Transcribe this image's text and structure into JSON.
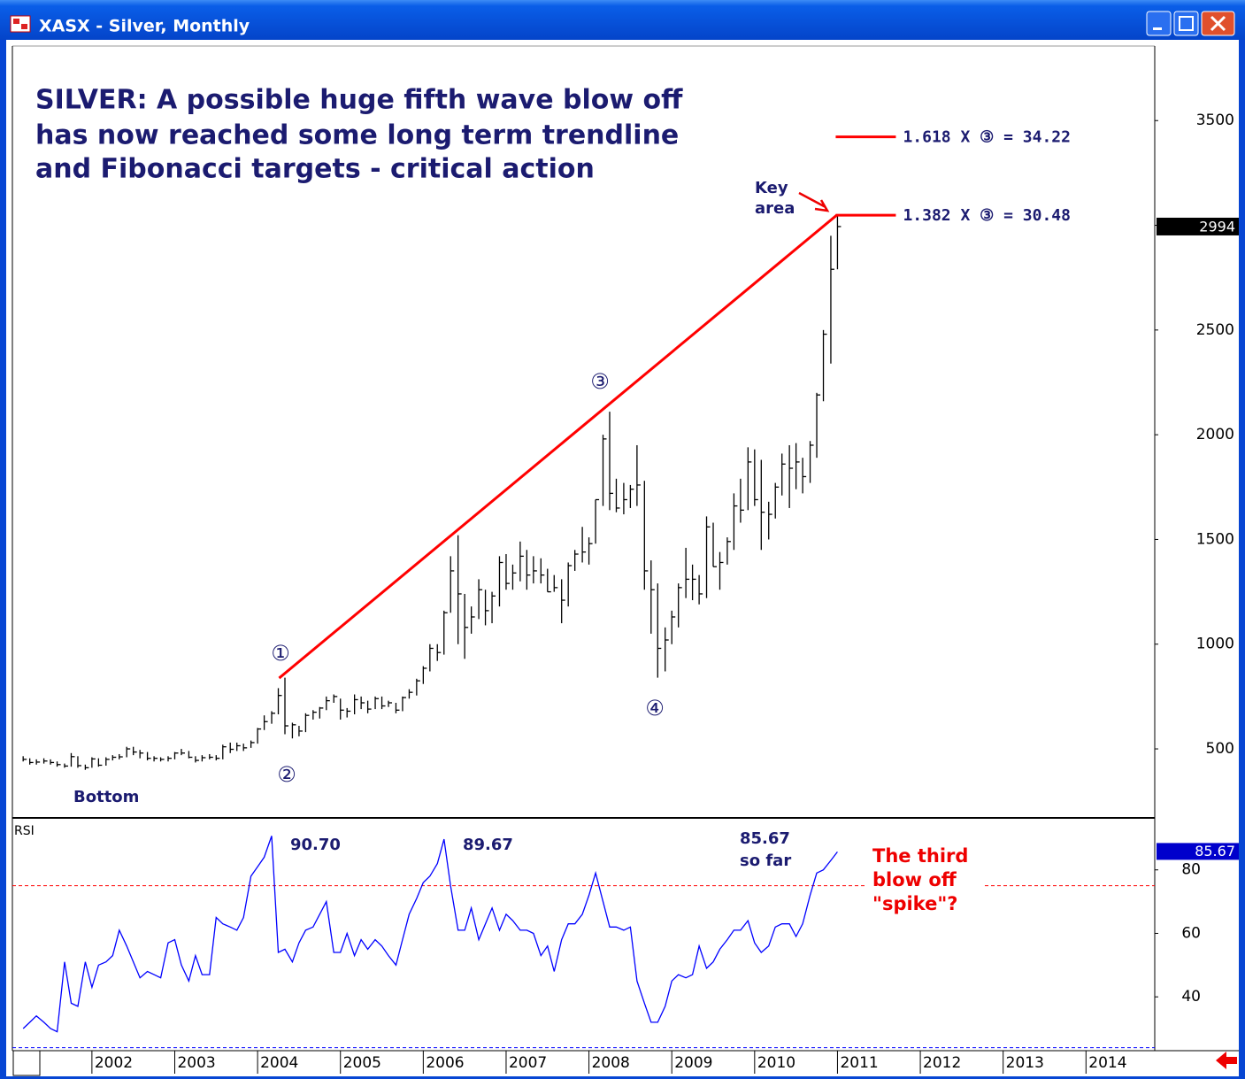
{
  "window_title": "XASX - Silver, Monthly",
  "chart_data": [
    {
      "type": "hlc",
      "title_lines": [
        "SILVER: A possible huge fifth wave blow off",
        "has now reached some long term trendline",
        "and Fibonacci targets - critical action"
      ],
      "annotations": [
        "Key",
        "area",
        "Bottom"
      ],
      "waves": [
        "①",
        "②",
        "③",
        "④"
      ],
      "color": "#000000",
      "x": [
        2001.17,
        2001.25,
        2001.33,
        2001.42,
        2001.5,
        2001.58,
        2001.67,
        2001.75,
        2001.83,
        2001.92,
        2002,
        2002.08,
        2002.17,
        2002.25,
        2002.33,
        2002.42,
        2002.5,
        2002.58,
        2002.67,
        2002.75,
        2002.83,
        2002.92,
        2003,
        2003.08,
        2003.17,
        2003.25,
        2003.33,
        2003.42,
        2003.5,
        2003.58,
        2003.67,
        2003.75,
        2003.83,
        2003.92,
        2004,
        2004.08,
        2004.17,
        2004.25,
        2004.33,
        2004.42,
        2004.5,
        2004.58,
        2004.67,
        2004.75,
        2004.83,
        2004.92,
        2005,
        2005.08,
        2005.17,
        2005.25,
        2005.33,
        2005.42,
        2005.5,
        2005.58,
        2005.67,
        2005.75,
        2005.83,
        2005.92,
        2006,
        2006.08,
        2006.17,
        2006.25,
        2006.33,
        2006.42,
        2006.5,
        2006.58,
        2006.67,
        2006.75,
        2006.83,
        2006.92,
        2007,
        2007.08,
        2007.17,
        2007.25,
        2007.33,
        2007.42,
        2007.5,
        2007.58,
        2007.67,
        2007.75,
        2007.83,
        2007.92,
        2008,
        2008.08,
        2008.17,
        2008.25,
        2008.33,
        2008.42,
        2008.5,
        2008.58,
        2008.67,
        2008.75,
        2008.83,
        2008.92,
        2009,
        2009.08,
        2009.17,
        2009.25,
        2009.33,
        2009.42,
        2009.5,
        2009.58,
        2009.67,
        2009.75,
        2009.83,
        2009.92,
        2010,
        2010.08,
        2010.17,
        2010.25,
        2010.33,
        2010.42,
        2010.5,
        2010.58,
        2010.67,
        2010.75,
        2010.83,
        2010.92,
        2011
      ],
      "high": [
        465,
        455,
        450,
        455,
        450,
        440,
        430,
        480,
        465,
        425,
        460,
        455,
        460,
        470,
        475,
        510,
        510,
        495,
        485,
        465,
        460,
        465,
        485,
        500,
        490,
        465,
        470,
        475,
        470,
        520,
        530,
        530,
        525,
        540,
        600,
        660,
        680,
        790,
        840,
        625,
        610,
        670,
        685,
        700,
        750,
        760,
        740,
        695,
        760,
        750,
        730,
        750,
        750,
        730,
        720,
        750,
        785,
        835,
        895,
        1000,
        1000,
        1160,
        1420,
        1520,
        1240,
        1180,
        1310,
        1260,
        1250,
        1420,
        1430,
        1380,
        1490,
        1450,
        1420,
        1410,
        1360,
        1330,
        1310,
        1390,
        1450,
        1560,
        1510,
        1690,
        2000,
        2110,
        1790,
        1770,
        1760,
        1950,
        1780,
        1400,
        1290,
        1080,
        1160,
        1290,
        1460,
        1380,
        1330,
        1610,
        1580,
        1440,
        1510,
        1720,
        1790,
        1940,
        1930,
        1880,
        1680,
        1770,
        1910,
        1950,
        1960,
        1890,
        1970,
        2200,
        2500,
        2950,
        3048
      ],
      "low": [
        440,
        425,
        425,
        430,
        425,
        415,
        410,
        415,
        410,
        400,
        410,
        415,
        420,
        445,
        450,
        460,
        470,
        455,
        445,
        440,
        440,
        440,
        450,
        470,
        455,
        435,
        440,
        450,
        445,
        450,
        480,
        490,
        490,
        505,
        525,
        590,
        620,
        665,
        570,
        550,
        560,
        580,
        640,
        645,
        685,
        720,
        640,
        650,
        665,
        690,
        670,
        690,
        690,
        700,
        670,
        680,
        740,
        755,
        810,
        870,
        920,
        950,
        1150,
        1000,
        930,
        1050,
        1120,
        1090,
        1100,
        1180,
        1260,
        1260,
        1300,
        1260,
        1290,
        1290,
        1250,
        1250,
        1100,
        1180,
        1350,
        1390,
        1380,
        1480,
        1660,
        1640,
        1630,
        1620,
        1650,
        1660,
        1260,
        1050,
        840,
        870,
        1000,
        1080,
        1220,
        1210,
        1190,
        1220,
        1370,
        1260,
        1380,
        1450,
        1580,
        1640,
        1660,
        1450,
        1500,
        1600,
        1710,
        1650,
        1740,
        1720,
        1770,
        1890,
        2160,
        2340,
        2790
      ],
      "close": [
        450,
        435,
        437,
        442,
        435,
        425,
        418,
        463,
        420,
        410,
        452,
        422,
        450,
        460,
        462,
        500,
        485,
        480,
        455,
        455,
        450,
        455,
        480,
        480,
        460,
        445,
        458,
        460,
        455,
        510,
        498,
        515,
        505,
        530,
        595,
        630,
        670,
        755,
        610,
        615,
        585,
        660,
        675,
        695,
        730,
        750,
        685,
        680,
        735,
        720,
        690,
        740,
        705,
        720,
        685,
        745,
        770,
        825,
        885,
        980,
        960,
        1150,
        1350,
        1240,
        1080,
        1130,
        1260,
        1160,
        1230,
        1390,
        1290,
        1340,
        1420,
        1330,
        1350,
        1330,
        1250,
        1270,
        1210,
        1375,
        1430,
        1440,
        1480,
        1690,
        1980,
        1720,
        1650,
        1690,
        1740,
        1760,
        1350,
        1260,
        980,
        1020,
        1130,
        1270,
        1310,
        1310,
        1240,
        1560,
        1370,
        1390,
        1490,
        1660,
        1640,
        1870,
        1690,
        1630,
        1620,
        1750,
        1860,
        1840,
        1870,
        1800,
        1950,
        2190,
        2480,
        2790,
        2994
      ],
      "trendline": {
        "x": [
          2004.26,
          2010.99
        ],
        "y": [
          838,
          3048
        ],
        "color": "#ff0000"
      },
      "fib_levels": [
        {
          "value": 3422,
          "label": "1.618 X  ③  = 34.22"
        },
        {
          "value": 3048,
          "label": "1.382 X  ③  = 30.48"
        }
      ],
      "fib_color": "#ff0000",
      "xlim": [
        2001.04,
        2014.83
      ],
      "xticks": [
        2002,
        2003,
        2004,
        2005,
        2006,
        2007,
        2008,
        2009,
        2010,
        2011,
        2012,
        2013,
        2014
      ],
      "ylim": [
        179,
        3856
      ],
      "yticks": [
        500,
        1000,
        1500,
        2000,
        2500,
        3000,
        3500
      ]
    },
    {
      "type": "line",
      "label": "RSI",
      "color": "#0000ff",
      "annotations": [
        "90.70",
        "89.67",
        "85.67",
        "so far",
        "The third",
        "blow off",
        "\"spike\"?"
      ],
      "x": [
        2001.17,
        2001.25,
        2001.33,
        2001.42,
        2001.5,
        2001.58,
        2001.67,
        2001.75,
        2001.83,
        2001.92,
        2002,
        2002.08,
        2002.17,
        2002.25,
        2002.33,
        2002.42,
        2002.5,
        2002.58,
        2002.67,
        2002.75,
        2002.83,
        2002.92,
        2003,
        2003.08,
        2003.17,
        2003.25,
        2003.33,
        2003.42,
        2003.5,
        2003.58,
        2003.67,
        2003.75,
        2003.83,
        2003.92,
        2004,
        2004.08,
        2004.17,
        2004.25,
        2004.33,
        2004.42,
        2004.5,
        2004.58,
        2004.67,
        2004.75,
        2004.83,
        2004.92,
        2005,
        2005.08,
        2005.17,
        2005.25,
        2005.33,
        2005.42,
        2005.5,
        2005.58,
        2005.67,
        2005.75,
        2005.83,
        2005.92,
        2006,
        2006.08,
        2006.17,
        2006.25,
        2006.33,
        2006.42,
        2006.5,
        2006.58,
        2006.67,
        2006.75,
        2006.83,
        2006.92,
        2007,
        2007.08,
        2007.17,
        2007.25,
        2007.33,
        2007.42,
        2007.5,
        2007.58,
        2007.67,
        2007.75,
        2007.83,
        2007.92,
        2008,
        2008.08,
        2008.17,
        2008.25,
        2008.33,
        2008.42,
        2008.5,
        2008.58,
        2008.67,
        2008.75,
        2008.83,
        2008.92,
        2009,
        2009.08,
        2009.17,
        2009.25,
        2009.33,
        2009.42,
        2009.5,
        2009.58,
        2009.67,
        2009.75,
        2009.83,
        2009.92,
        2010,
        2010.08,
        2010.17,
        2010.25,
        2010.33,
        2010.42,
        2010.5,
        2010.58,
        2010.67,
        2010.75,
        2010.83,
        2010.92,
        2011
      ],
      "values": [
        30,
        32,
        34,
        32,
        30,
        29,
        51,
        38,
        37,
        51,
        43,
        50,
        51,
        53,
        61,
        56,
        51,
        46,
        48,
        47,
        46,
        57,
        58,
        50,
        45,
        53,
        47,
        47,
        65,
        63,
        62,
        61,
        65,
        78,
        81,
        84,
        90.7,
        54,
        55,
        51,
        57,
        61,
        62,
        66,
        70,
        54,
        54,
        60,
        53,
        58,
        55,
        58,
        56,
        53,
        50,
        58,
        66,
        71,
        76,
        78,
        82,
        89.67,
        75,
        61,
        61,
        68,
        58,
        63,
        68,
        61,
        66,
        64,
        61,
        61,
        60,
        53,
        56,
        48,
        58,
        63,
        63,
        66,
        72,
        79,
        70,
        62,
        62,
        61,
        62,
        45,
        38,
        32,
        32,
        37,
        45,
        47,
        46,
        47,
        56,
        49,
        51,
        55,
        58,
        61,
        61,
        64,
        57,
        54,
        56,
        62,
        63,
        63,
        59,
        63,
        72,
        79,
        80,
        83,
        85.67
      ],
      "levels": [
        {
          "value": 75,
          "color": "#ff0000"
        },
        {
          "value": 24,
          "color": "#0000ff"
        }
      ],
      "xlim": [
        2001.04,
        2014.83
      ],
      "ylim": [
        23.6,
        96.1
      ],
      "yticks": [
        40,
        60,
        80
      ]
    }
  ]
}
